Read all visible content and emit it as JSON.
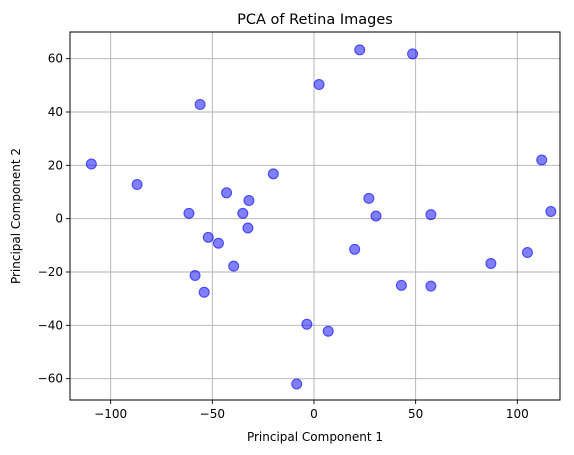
{
  "chart_data": {
    "type": "scatter",
    "title": "PCA of Retina Images",
    "xlabel": "Principal Component 1",
    "ylabel": "Principal Component 2",
    "xlim": [
      -120,
      121
    ],
    "ylim": [
      -68,
      70
    ],
    "xticks": [
      -100,
      -50,
      0,
      50,
      100
    ],
    "yticks": [
      -60,
      -40,
      -20,
      0,
      20,
      40,
      60
    ],
    "grid": true,
    "marker_color": "#0000ff",
    "marker_alpha": 0.5,
    "points": [
      {
        "x": -109.5,
        "y": 20.5
      },
      {
        "x": -87,
        "y": 12.8
      },
      {
        "x": -56,
        "y": 42.8
      },
      {
        "x": -61.5,
        "y": 2
      },
      {
        "x": -52,
        "y": -7
      },
      {
        "x": -47,
        "y": -9.2
      },
      {
        "x": -43,
        "y": 9.7
      },
      {
        "x": -39.5,
        "y": -17.8
      },
      {
        "x": -35,
        "y": 2
      },
      {
        "x": -32,
        "y": 6.8
      },
      {
        "x": -32.5,
        "y": -3.5
      },
      {
        "x": -58.5,
        "y": -21.3
      },
      {
        "x": -54,
        "y": -27.6
      },
      {
        "x": -20,
        "y": 16.8
      },
      {
        "x": 2.5,
        "y": 50.3
      },
      {
        "x": 22.5,
        "y": 63.3
      },
      {
        "x": 48.5,
        "y": 61.8
      },
      {
        "x": 27,
        "y": 7.6
      },
      {
        "x": 30.5,
        "y": 1
      },
      {
        "x": 20,
        "y": -11.5
      },
      {
        "x": 57.5,
        "y": 1.5
      },
      {
        "x": 43,
        "y": -25
      },
      {
        "x": 57.5,
        "y": -25.3
      },
      {
        "x": -3.5,
        "y": -39.6
      },
      {
        "x": 7,
        "y": -42.2
      },
      {
        "x": -8.5,
        "y": -62
      },
      {
        "x": 87,
        "y": -16.8
      },
      {
        "x": 105,
        "y": -12.7
      },
      {
        "x": 112,
        "y": 22
      },
      {
        "x": 116.5,
        "y": 2.7
      }
    ]
  }
}
